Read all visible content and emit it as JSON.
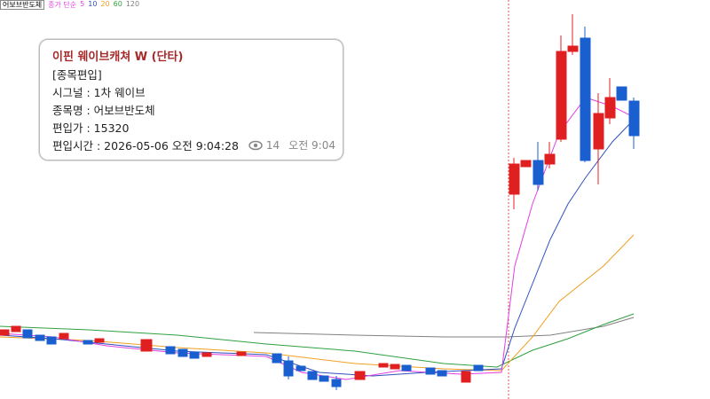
{
  "header": {
    "stock": "어보브반도체",
    "legend": [
      {
        "label": "종가 단순",
        "color": "#e040e0"
      },
      {
        "label": "5",
        "color": "#e040e0"
      },
      {
        "label": "10",
        "color": "#3050c0"
      },
      {
        "label": "20",
        "color": "#f0a020"
      },
      {
        "label": "60",
        "color": "#30a040"
      },
      {
        "label": "120",
        "color": "#808080"
      }
    ]
  },
  "card": {
    "title": "이핀 웨이브캐쳐 W (단타)",
    "lines": [
      "[종목편입]",
      "시그널 : 1차 웨이브",
      "종목명 : 어보브반도체",
      "편입가 : 15320",
      "편입시간 : 2026-05-06 오전 9:04:28"
    ],
    "views": "14",
    "time": "오전 9:04"
  }
}
